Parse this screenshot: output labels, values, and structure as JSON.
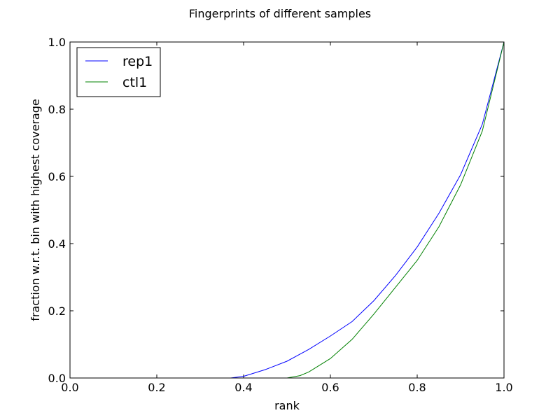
{
  "chart_data": {
    "type": "line",
    "title": "Fingerprints of different samples",
    "xlabel": "rank",
    "ylabel": "fraction w.r.t. bin with highest coverage",
    "xlim": [
      0.0,
      1.0
    ],
    "ylim": [
      0.0,
      1.0
    ],
    "xticks": [
      0.0,
      0.2,
      0.4,
      0.6,
      0.8,
      1.0
    ],
    "yticks": [
      0.0,
      0.2,
      0.4,
      0.6,
      0.8,
      1.0
    ],
    "xtick_labels": [
      "0.0",
      "0.2",
      "0.4",
      "0.6",
      "0.8",
      "1.0"
    ],
    "ytick_labels": [
      "0.0",
      "0.2",
      "0.4",
      "0.6",
      "0.8",
      "1.0"
    ],
    "grid": false,
    "legend_position": "top-left",
    "series": [
      {
        "name": "rep1",
        "color": "#0000ff",
        "x": [
          0.0,
          0.1,
          0.2,
          0.3,
          0.37,
          0.4,
          0.45,
          0.5,
          0.55,
          0.6,
          0.65,
          0.7,
          0.75,
          0.8,
          0.85,
          0.9,
          0.95,
          1.0
        ],
        "y": [
          0.0,
          0.0,
          0.0,
          0.0,
          0.0,
          0.005,
          0.025,
          0.05,
          0.085,
          0.125,
          0.168,
          0.23,
          0.305,
          0.39,
          0.49,
          0.605,
          0.755,
          1.0
        ]
      },
      {
        "name": "ctl1",
        "color": "#008000",
        "x": [
          0.0,
          0.1,
          0.2,
          0.3,
          0.4,
          0.5,
          0.53,
          0.55,
          0.6,
          0.65,
          0.7,
          0.75,
          0.8,
          0.85,
          0.9,
          0.95,
          1.0
        ],
        "y": [
          0.0,
          0.0,
          0.0,
          0.0,
          0.0,
          0.0,
          0.007,
          0.018,
          0.058,
          0.115,
          0.19,
          0.27,
          0.35,
          0.45,
          0.575,
          0.735,
          1.0
        ]
      }
    ]
  }
}
